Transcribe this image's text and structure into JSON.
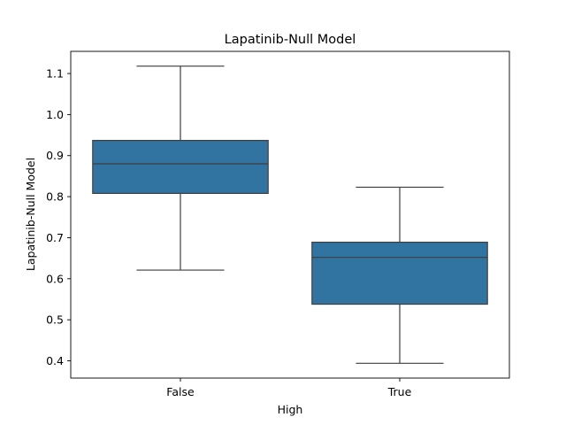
{
  "chart_data": {
    "type": "boxplot",
    "title": "Lapatinib-Null Model",
    "xlabel": "High",
    "ylabel": "Lapatinib-Null Model",
    "categories": [
      "False",
      "True"
    ],
    "boxes": [
      {
        "category": "False",
        "whisker_low": 0.621,
        "q1": 0.808,
        "median": 0.88,
        "q3": 0.937,
        "whisker_high": 1.118
      },
      {
        "category": "True",
        "whisker_low": 0.394,
        "q1": 0.538,
        "median": 0.652,
        "q3": 0.689,
        "whisker_high": 0.823
      }
    ],
    "yticks": [
      "0.4",
      "0.5",
      "0.6",
      "0.7",
      "0.8",
      "0.9",
      "1.0",
      "1.1"
    ],
    "ylim": [
      0.358,
      1.154
    ],
    "grid": false,
    "colors": {
      "box_fill": "#3274a1",
      "line": "#3d3d3d",
      "axes": "#000000"
    }
  }
}
